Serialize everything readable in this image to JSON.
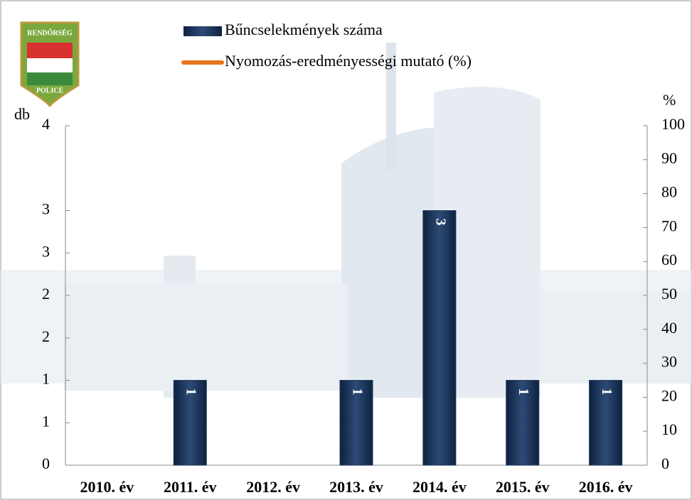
{
  "logo": {
    "top": "RENDŐRSÉG",
    "bottom": "POLICE"
  },
  "chart_data": {
    "type": "bar",
    "y_label": "db",
    "y2_label": "%",
    "categories": [
      "2010. év",
      "2011. év",
      "2012. év",
      "2013. év",
      "2014. év",
      "2015. év",
      "2016. év"
    ],
    "series": [
      {
        "name": "Bűncselekmények száma",
        "color": "#1f3a5f",
        "values": [
          null,
          1,
          null,
          1,
          3,
          1,
          1
        ]
      },
      {
        "name": "Nyomozás-eredményességi mutató (%)",
        "color": "#e8741e",
        "axis": "y2",
        "type": "line",
        "values": [
          null,
          null,
          null,
          null,
          null,
          null,
          null
        ]
      }
    ],
    "ylim": [
      0,
      4
    ],
    "yticks": [
      0,
      {
        "value": 0.5,
        "label": "1"
      },
      1,
      {
        "value": 1.5,
        "label": "2"
      },
      2,
      {
        "value": 2.5,
        "label": "3"
      },
      3,
      4
    ],
    "y2lim": [
      0,
      100
    ],
    "y2ticks": [
      0,
      10,
      20,
      30,
      40,
      50,
      60,
      70,
      80,
      90,
      100
    ],
    "grid": false
  }
}
